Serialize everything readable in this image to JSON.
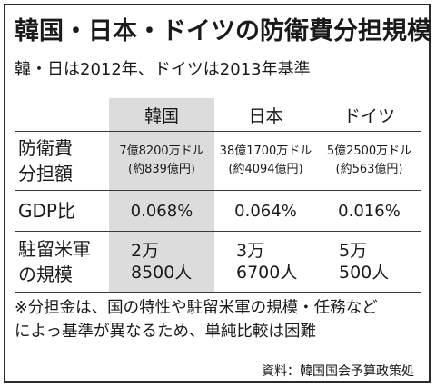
{
  "title": "韓国・日本・ドイツの防衛費分担規模",
  "subtitle": "韓・日は2012年、ドイツは2013年基準",
  "table": {
    "columns": [
      "韓国",
      "日本",
      "ドイツ"
    ],
    "rows": [
      {
        "label": [
          "防衛費",
          "分担額"
        ],
        "cells": [
          [
            "7億8200万ドル",
            "(約839億円)"
          ],
          [
            "38億1700万ドル",
            "(約4094億円)"
          ],
          [
            "5億2500万ドル",
            "(約563億円)"
          ]
        ]
      },
      {
        "label": [
          "GDP比"
        ],
        "cells": [
          "0.068%",
          "0.064%",
          "0.016%"
        ]
      },
      {
        "label": [
          "駐留米軍",
          "の規模"
        ],
        "cells": [
          [
            "2万",
            "8500人"
          ],
          [
            "3万",
            "6700人"
          ],
          [
            "5万",
            "500人"
          ]
        ]
      }
    ],
    "highlight_color": "#dcdcdc"
  },
  "note": [
    "※分担金は、国の特性や駐留米軍の規模・任務など",
    "によっ基準が異なるため、単純比較は困難"
  ],
  "source": "資料：韓国国会予算政策処"
}
